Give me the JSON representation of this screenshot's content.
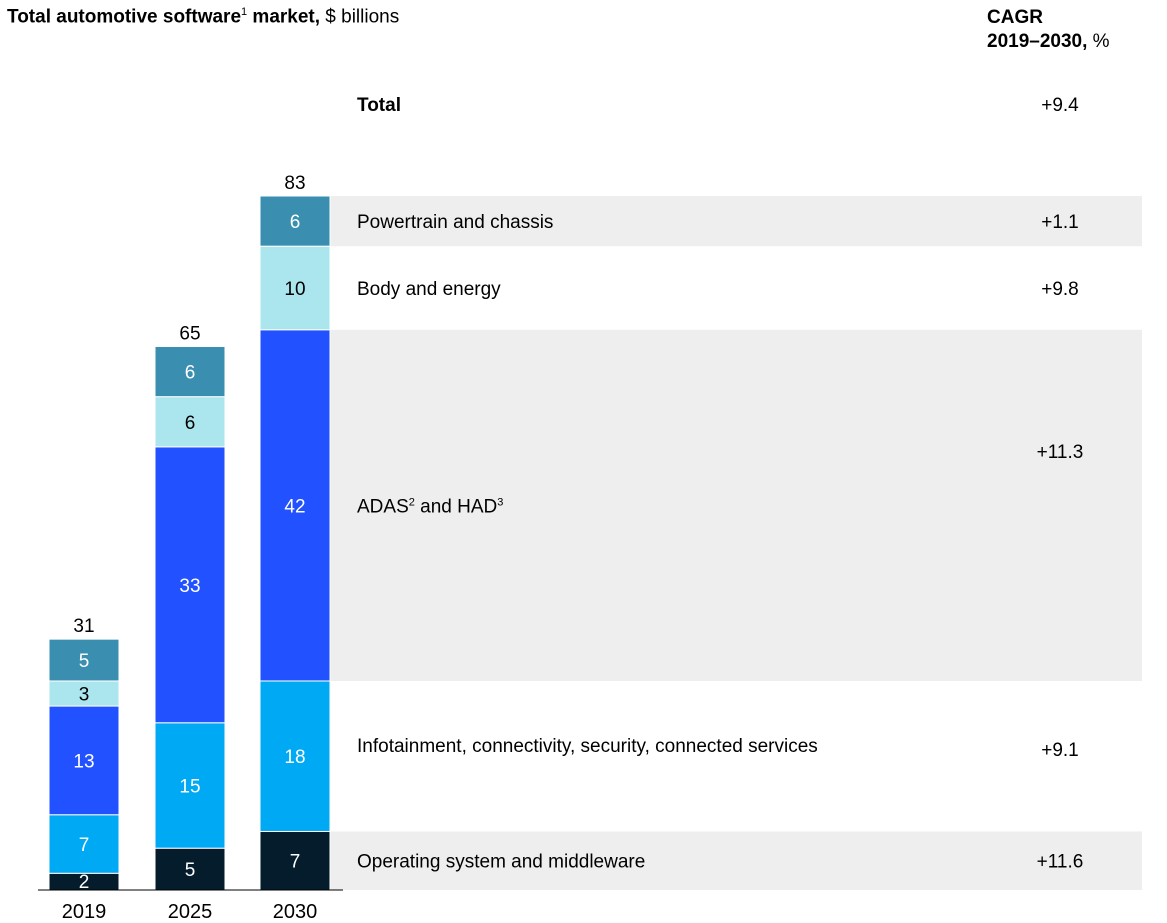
{
  "header": {
    "title_bold": "Total automotive software",
    "title_footnote": "1",
    "title_bold_tail": " market,",
    "title_unit": " $ billions",
    "cagr_line1": "CAGR",
    "cagr_line2_bold": "2019–2030,",
    "cagr_line2_unit": " %"
  },
  "colors": {
    "powertrain": "#3a8fb0",
    "body": "#abe5ee",
    "adas": "#2251ff",
    "infotainment": "#00a9f4",
    "os": "#051c2c",
    "band": "#eeeeee"
  },
  "chart_data": {
    "type": "bar",
    "stacked": true,
    "categories": [
      "2019",
      "2025",
      "2030"
    ],
    "totals": [
      "31",
      "65",
      "83"
    ],
    "series": [
      {
        "key": "os",
        "name": "Operating system and middleware",
        "values": [
          2,
          5,
          7
        ],
        "cagr": "+11.6"
      },
      {
        "key": "infotainment",
        "name": "Infotainment, connectivity, security, connected services",
        "values": [
          7,
          15,
          18
        ],
        "cagr": "+9.1"
      },
      {
        "key": "adas",
        "name": "ADAS² and HAD³",
        "values": [
          13,
          33,
          42
        ],
        "cagr": "+11.3"
      },
      {
        "key": "body",
        "name": "Body and energy",
        "values": [
          3,
          6,
          10
        ],
        "cagr": "+9.8"
      },
      {
        "key": "powertrain",
        "name": "Powertrain and chassis",
        "values": [
          5,
          6,
          6
        ],
        "cagr": "+1.1"
      }
    ],
    "total_row": {
      "label": "Total",
      "cagr": "+9.4"
    }
  }
}
